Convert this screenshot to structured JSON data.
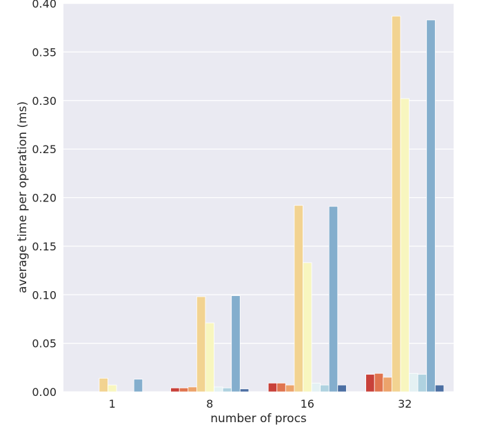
{
  "chart_data": {
    "type": "bar",
    "title": "",
    "xlabel": "number of procs",
    "ylabel": "average time per operation (ms)",
    "categories": [
      "1",
      "8",
      "16",
      "32"
    ],
    "ylim": [
      0,
      0.4
    ],
    "yticks": [
      0.0,
      0.05,
      0.1,
      0.15,
      0.2,
      0.25,
      0.3,
      0.35,
      0.4
    ],
    "ytick_labels": [
      "0.00",
      "0.05",
      "0.10",
      "0.15",
      "0.20",
      "0.25",
      "0.30",
      "0.35",
      "0.40"
    ],
    "grid": true,
    "legend": "none",
    "background_color": "#eaeaf2",
    "series": [
      {
        "color": "#c8413a",
        "values": [
          0.0,
          0.004,
          0.009,
          0.018
        ]
      },
      {
        "color": "#e0744f",
        "values": [
          0.0,
          0.004,
          0.009,
          0.019
        ]
      },
      {
        "color": "#eca36b",
        "values": [
          0.0,
          0.005,
          0.007,
          0.015
        ]
      },
      {
        "color": "#f2d391",
        "values": [
          0.014,
          0.098,
          0.192,
          0.387
        ]
      },
      {
        "color": "#f8f6bf",
        "values": [
          0.007,
          0.071,
          0.133,
          0.302
        ]
      },
      {
        "color": "#e4f1f3",
        "values": [
          0.0,
          0.005,
          0.009,
          0.019
        ]
      },
      {
        "color": "#afd2e0",
        "values": [
          0.0,
          0.004,
          0.007,
          0.018
        ]
      },
      {
        "color": "#84aecd",
        "values": [
          0.013,
          0.099,
          0.191,
          0.383
        ]
      },
      {
        "color": "#4c6fa3",
        "values": [
          0.0,
          0.003,
          0.007,
          0.007
        ]
      }
    ]
  }
}
